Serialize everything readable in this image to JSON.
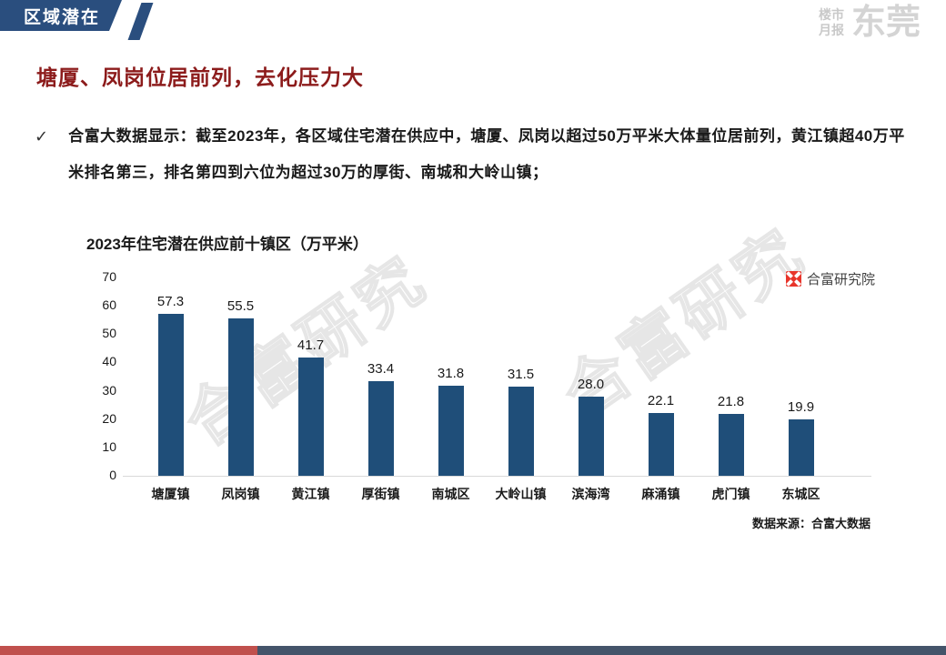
{
  "header": {
    "tab_label": "区域潜在",
    "brand": {
      "small_top": "楼市",
      "small_bottom": "月报",
      "large": "东莞"
    }
  },
  "page_title": "塘厦、凤岗位居前列，去化压力大",
  "bullet": {
    "marker": "✓",
    "text": "合富大数据显示：截至2023年，各区域住宅潜在供应中，塘厦、凤岗以超过50万平米大体量位居前列，黄江镇超40万平米排名第三，排名第四到六位为超过30万的厚街、南城和大岭山镇；"
  },
  "chart_data": {
    "type": "bar",
    "title": "2023年住宅潜在供应前十镇区（万平米）",
    "categories": [
      "塘厦镇",
      "凤岗镇",
      "黄江镇",
      "厚街镇",
      "南城区",
      "大岭山镇",
      "滨海湾",
      "麻涌镇",
      "虎门镇",
      "东城区"
    ],
    "values": [
      57.3,
      55.5,
      41.7,
      33.4,
      31.8,
      31.5,
      28.0,
      22.1,
      21.8,
      19.9
    ],
    "value_labels": [
      "57.3",
      "55.5",
      "41.7",
      "33.4",
      "31.8",
      "31.5",
      "28.0",
      "22.1",
      "21.8",
      "19.9"
    ],
    "xlabel": "",
    "ylabel": "",
    "ylim": [
      0,
      70
    ],
    "yticks": [
      0,
      10,
      20,
      30,
      40,
      50,
      60,
      70
    ],
    "grid": false,
    "bar_color": "#1F4E79",
    "legend": {
      "label": "合富研究院",
      "position": "top-right"
    }
  },
  "watermark_text": "合富研究",
  "source_note": "数据来源：合富大数据",
  "colors": {
    "header_bar": "#2A4E7E",
    "title_red": "#8C1B1B",
    "bar_blue": "#1F4E79",
    "footer_red": "#C0504D",
    "footer_slate": "#44546A",
    "brand_gray": "#D4D4D4",
    "legend_logo_red": "#E8352B"
  }
}
